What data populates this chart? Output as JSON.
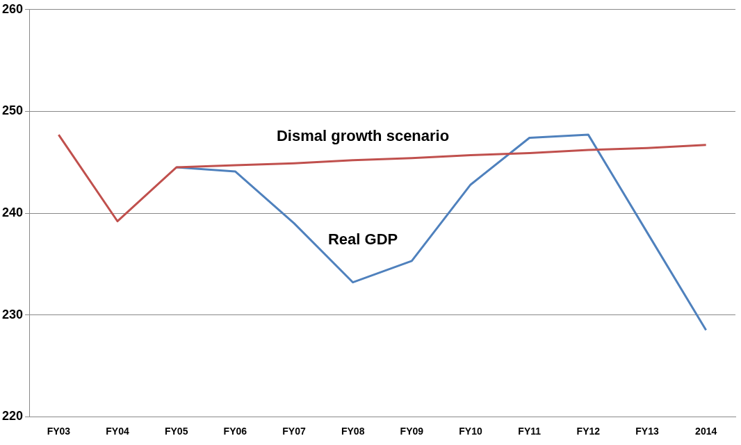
{
  "chart_data": {
    "type": "line",
    "categories": [
      "FY03",
      "FY04",
      "FY05",
      "FY06",
      "FY07",
      "FY08",
      "FY09",
      "FY10",
      "FY11",
      "FY12",
      "FY13",
      "2014"
    ],
    "series": [
      {
        "name": "Dismal growth scenario",
        "color": "#c0504d",
        "values": [
          247.7,
          239.2,
          244.5,
          244.7,
          244.9,
          245.2,
          245.4,
          245.7,
          245.9,
          246.2,
          246.4,
          246.7
        ]
      },
      {
        "name": "Real GDP",
        "color": "#4f81bd",
        "values": [
          null,
          null,
          244.5,
          244.1,
          239.0,
          233.2,
          235.3,
          242.8,
          247.4,
          247.7,
          238.1,
          228.5
        ]
      }
    ],
    "ylim": [
      220,
      260
    ],
    "yticks": [
      220,
      230,
      240,
      250,
      260
    ],
    "grid": "y",
    "legend": false,
    "marker": "none",
    "line_style": "solid"
  }
}
